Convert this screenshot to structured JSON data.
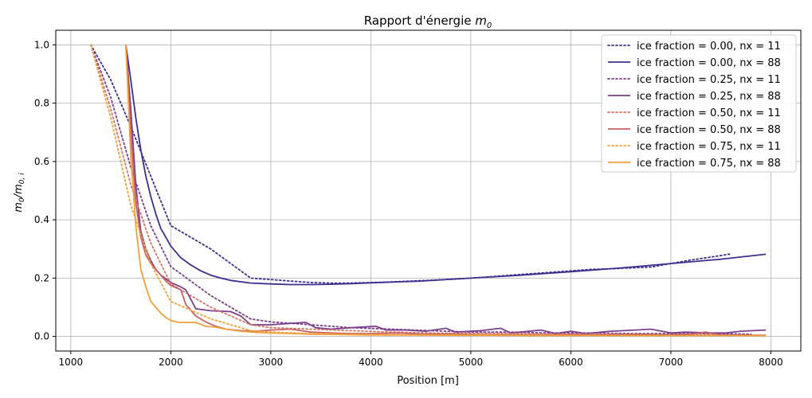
{
  "chart_data": {
    "type": "line",
    "title": "Rapport d'énergie",
    "title_math": "m",
    "title_math_sub": "0",
    "xlabel": "Position [m]",
    "ylabel_main": "m",
    "ylabel_sub1": "0",
    "ylabel_sep": "/m",
    "ylabel_sub2": "0, i",
    "xlim": [
      850,
      8300
    ],
    "ylim": [
      -0.05,
      1.05
    ],
    "xticks": [
      1000,
      2000,
      3000,
      4000,
      5000,
      6000,
      7000,
      8000
    ],
    "xtick_labels": [
      "1000",
      "2000",
      "3000",
      "4000",
      "5000",
      "6000",
      "7000",
      "8000"
    ],
    "yticks": [
      0.0,
      0.2,
      0.4,
      0.6,
      0.8,
      1.0
    ],
    "ytick_labels": [
      "0.0",
      "0.2",
      "0.4",
      "0.6",
      "0.8",
      "1.0"
    ],
    "grid": true,
    "legend_position": "top-right",
    "series": [
      {
        "name": "ice fraction = 0.00, nx = 11",
        "color": "#3b2f8f",
        "dash": "dotted",
        "x": [
          1200,
          1400,
          1600,
          1800,
          2000,
          2200,
          2400,
          2600,
          2800,
          3000,
          3200,
          3400,
          3600,
          3800,
          4000,
          4200,
          4400,
          4600,
          4800,
          5000,
          5200,
          5400,
          5600,
          5800,
          6000,
          6200,
          6400,
          6600,
          6800,
          7000,
          7200,
          7400,
          7600
        ],
        "y": [
          1.0,
          0.88,
          0.72,
          0.55,
          0.38,
          0.34,
          0.3,
          0.25,
          0.2,
          0.195,
          0.19,
          0.185,
          0.183,
          0.183,
          0.185,
          0.187,
          0.19,
          0.193,
          0.196,
          0.2,
          0.205,
          0.21,
          0.215,
          0.22,
          0.225,
          0.23,
          0.232,
          0.235,
          0.238,
          0.25,
          0.262,
          0.272,
          0.283
        ]
      },
      {
        "name": "ice fraction = 0.00, nx = 88",
        "color": "#3b2f8f",
        "dash": "solid",
        "x": [
          1550,
          1600,
          1650,
          1700,
          1750,
          1800,
          1850,
          1900,
          1950,
          2000,
          2100,
          2200,
          2300,
          2400,
          2500,
          2600,
          2800,
          3000,
          3200,
          3400,
          3600,
          3800,
          4000,
          4500,
          5000,
          5500,
          6000,
          6500,
          7000,
          7500,
          7950
        ],
        "y": [
          1.0,
          0.88,
          0.75,
          0.64,
          0.55,
          0.48,
          0.42,
          0.37,
          0.34,
          0.31,
          0.27,
          0.245,
          0.225,
          0.21,
          0.2,
          0.192,
          0.183,
          0.18,
          0.178,
          0.178,
          0.179,
          0.181,
          0.184,
          0.19,
          0.2,
          0.21,
          0.222,
          0.235,
          0.25,
          0.265,
          0.282
        ]
      },
      {
        "name": "ice fraction = 0.25, nx = 11",
        "color": "#7b3f8c",
        "dash": "dotted",
        "x": [
          1200,
          1400,
          1600,
          1800,
          2000,
          2200,
          2400,
          2600,
          2800,
          3000,
          3400,
          3800,
          4200,
          4600,
          5000,
          5400,
          5800,
          6200,
          6600,
          7000,
          7400,
          7800
        ],
        "y": [
          1.0,
          0.82,
          0.58,
          0.38,
          0.24,
          0.19,
          0.14,
          0.1,
          0.06,
          0.05,
          0.04,
          0.03,
          0.025,
          0.02,
          0.015,
          0.015,
          0.012,
          0.012,
          0.01,
          0.01,
          0.01,
          0.008
        ]
      },
      {
        "name": "ice fraction = 0.25, nx = 88",
        "color": "#7b3f8c",
        "dash": "solid",
        "x": [
          1550,
          1600,
          1650,
          1700,
          1750,
          1800,
          1850,
          1900,
          2000,
          2100,
          2150,
          2250,
          2400,
          2600,
          2700,
          2800,
          3000,
          3200,
          3350,
          3450,
          3600,
          3800,
          4050,
          4150,
          4350,
          4550,
          4750,
          4850,
          5100,
          5300,
          5400,
          5700,
          5850,
          6000,
          6150,
          6400,
          6650,
          6800,
          7000,
          7150,
          7400,
          7550,
          7700,
          7950
        ],
        "y": [
          1.0,
          0.78,
          0.52,
          0.36,
          0.3,
          0.26,
          0.23,
          0.21,
          0.185,
          0.17,
          0.16,
          0.095,
          0.088,
          0.085,
          0.07,
          0.04,
          0.04,
          0.045,
          0.048,
          0.03,
          0.025,
          0.03,
          0.035,
          0.022,
          0.022,
          0.018,
          0.028,
          0.015,
          0.02,
          0.028,
          0.012,
          0.022,
          0.01,
          0.018,
          0.01,
          0.018,
          0.022,
          0.025,
          0.012,
          0.015,
          0.012,
          0.012,
          0.018,
          0.022
        ]
      },
      {
        "name": "ice fraction = 0.50, nx = 11",
        "color": "#d9725f",
        "dash": "dotted",
        "x": [
          1200,
          1400,
          1600,
          1800,
          2000,
          2200,
          2400,
          2600,
          2800,
          3000,
          3400,
          3800,
          4200,
          4600,
          5000,
          5400,
          5800,
          6200,
          6600,
          7000,
          7400,
          7800
        ],
        "y": [
          1.0,
          0.78,
          0.52,
          0.32,
          0.18,
          0.14,
          0.1,
          0.07,
          0.04,
          0.03,
          0.025,
          0.02,
          0.015,
          0.012,
          0.01,
          0.01,
          0.008,
          0.008,
          0.008,
          0.006,
          0.006,
          0.005
        ]
      },
      {
        "name": "ice fraction = 0.50, nx = 88",
        "color": "#c96064",
        "dash": "solid",
        "x": [
          1550,
          1600,
          1650,
          1700,
          1750,
          1800,
          1850,
          1900,
          1950,
          2000,
          2100,
          2150,
          2250,
          2350,
          2450,
          2550,
          2700,
          2850,
          3000,
          3200,
          3400,
          3600,
          3800,
          4000,
          4300,
          4500,
          4800,
          5100,
          5400,
          5700,
          6000,
          6300,
          6600,
          6900,
          7200,
          7350,
          7500,
          7800,
          7950
        ],
        "y": [
          1.0,
          0.7,
          0.46,
          0.34,
          0.28,
          0.25,
          0.23,
          0.21,
          0.19,
          0.175,
          0.16,
          0.11,
          0.07,
          0.05,
          0.035,
          0.025,
          0.02,
          0.018,
          0.022,
          0.025,
          0.015,
          0.012,
          0.01,
          0.01,
          0.012,
          0.008,
          0.008,
          0.006,
          0.006,
          0.005,
          0.006,
          0.005,
          0.005,
          0.005,
          0.008,
          0.015,
          0.005,
          0.004,
          0.004
        ]
      },
      {
        "name": "ice fraction = 0.75, nx = 11",
        "color": "#f2a13a",
        "dash": "dotted",
        "x": [
          1200,
          1400,
          1600,
          1800,
          2000,
          2200,
          2400,
          2600,
          2800,
          3000,
          3400,
          3800,
          4200,
          4600,
          5000,
          5400,
          5800,
          6200,
          6600,
          7000,
          7400,
          7800
        ],
        "y": [
          1.0,
          0.75,
          0.45,
          0.25,
          0.12,
          0.09,
          0.06,
          0.04,
          0.02,
          0.015,
          0.01,
          0.008,
          0.006,
          0.005,
          0.005,
          0.004,
          0.004,
          0.003,
          0.003,
          0.003,
          0.003,
          0.003
        ]
      },
      {
        "name": "ice fraction = 0.75, nx = 88",
        "color": "#f2a13a",
        "dash": "solid",
        "x": [
          1550,
          1600,
          1650,
          1700,
          1750,
          1800,
          1850,
          1900,
          1950,
          2000,
          2050,
          2100,
          2150,
          2250,
          2350,
          2450,
          2550,
          2700,
          2850,
          3000,
          3200,
          3400,
          3600,
          3800,
          4000,
          4400,
          4800,
          5200,
          5600,
          6000,
          6400,
          6800,
          7200,
          7600,
          7950
        ],
        "y": [
          1.0,
          0.62,
          0.38,
          0.23,
          0.17,
          0.12,
          0.1,
          0.08,
          0.065,
          0.055,
          0.05,
          0.048,
          0.048,
          0.048,
          0.035,
          0.032,
          0.025,
          0.018,
          0.014,
          0.012,
          0.01,
          0.008,
          0.007,
          0.006,
          0.005,
          0.005,
          0.004,
          0.004,
          0.003,
          0.003,
          0.003,
          0.003,
          0.003,
          0.003,
          0.003
        ]
      }
    ]
  }
}
